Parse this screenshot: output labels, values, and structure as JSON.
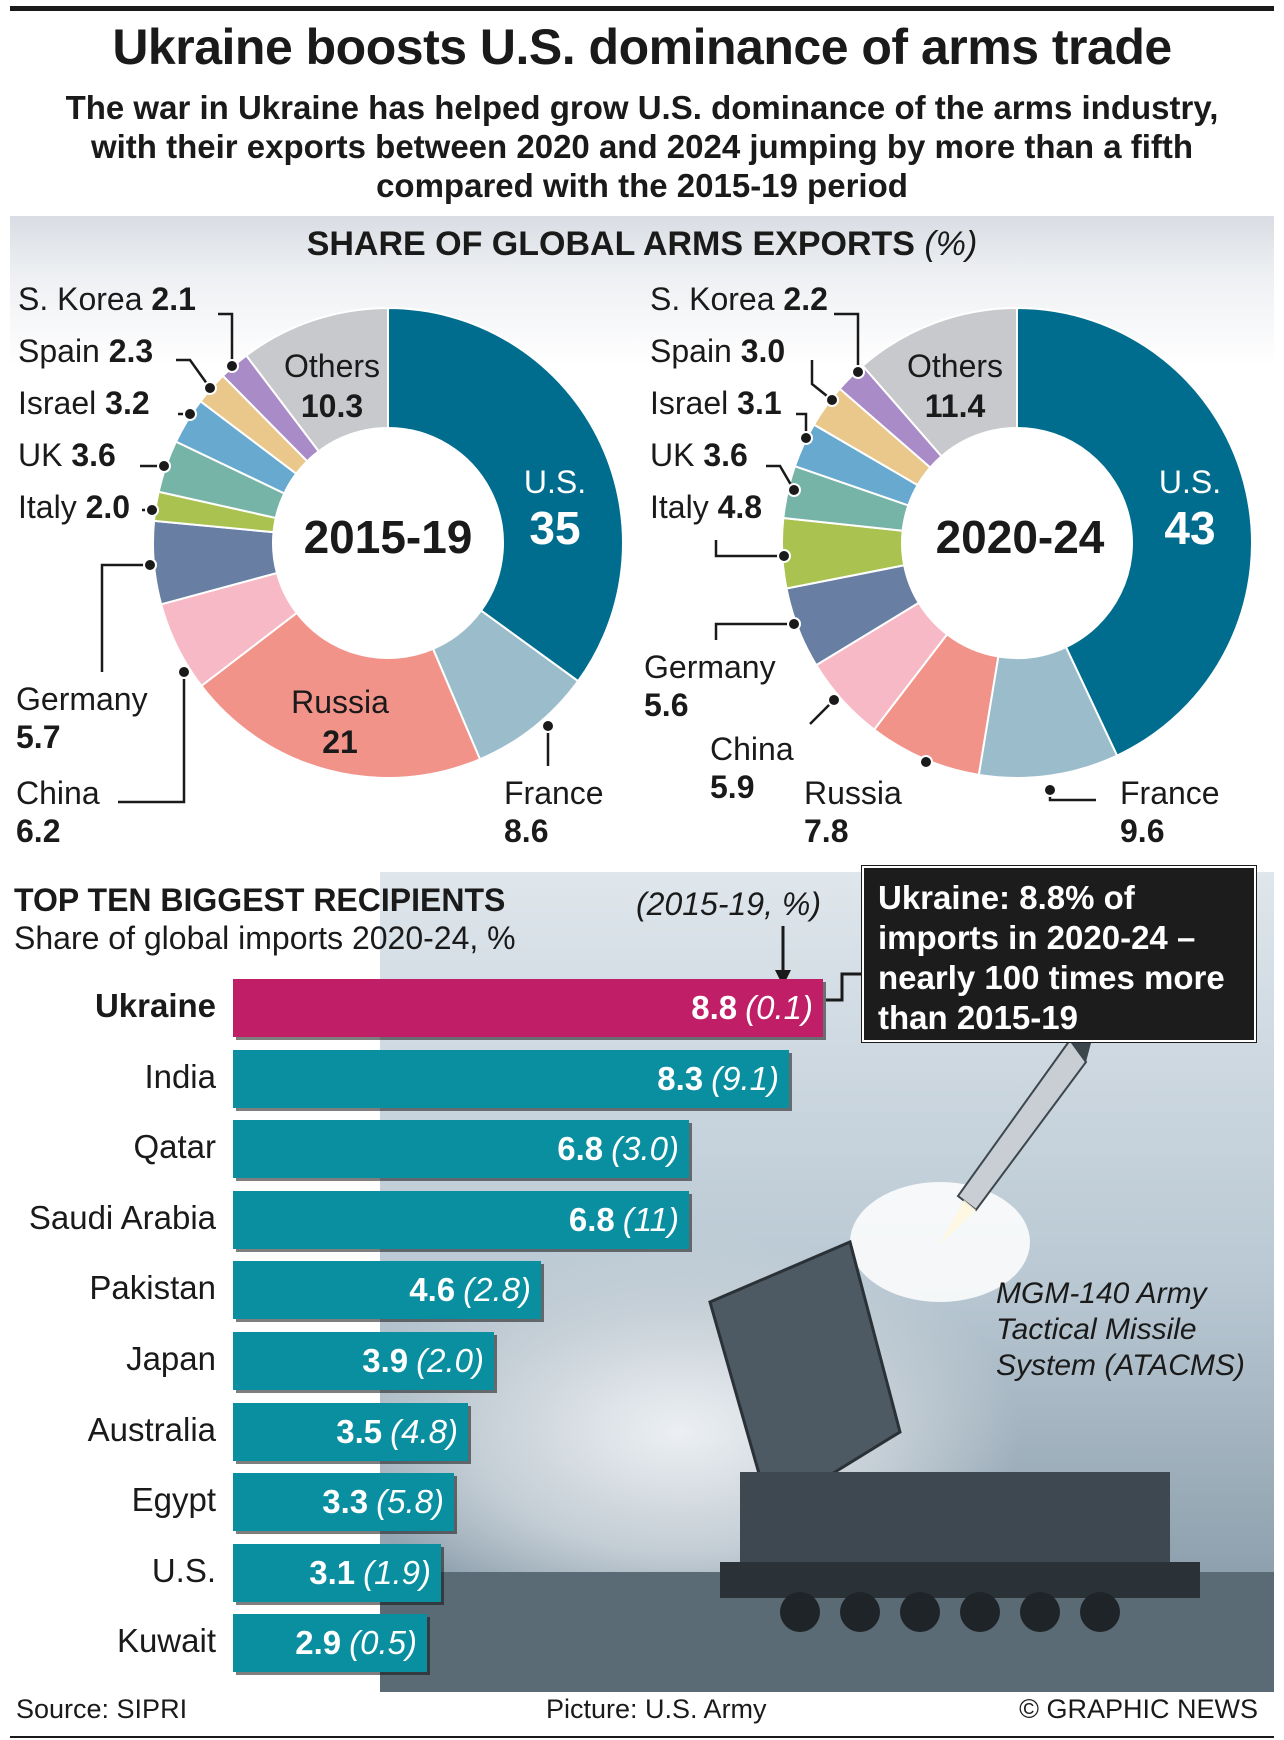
{
  "title": "Ukraine boosts U.S. dominance of arms trade",
  "subtitle": "The war in Ukraine has helped grow U.S. dominance of the arms industry, with their exports between 2020 and 2024 jumping by more than a fifth compared with the 2015-19 period",
  "exports_section": {
    "title": "SHARE OF GLOBAL ARMS EXPORTS",
    "unit": "(%)"
  },
  "imports_section": {
    "title": "TOP TEN BIGGEST RECIPIENTS",
    "subtitle": "Share of global imports 2020-24, %",
    "period_label": "(2015-19, %)"
  },
  "callout": "Ukraine: 8.8% of imports in 2020-24 – nearly 100 times more than 2015-19",
  "photo_caption": "MGM-140 Army Tactical Missile System (ATACMS)",
  "footer": {
    "source": "Source: SIPRI",
    "picture": "Picture: U.S. Army",
    "credit": "© GRAPHIC NEWS"
  },
  "colors": {
    "U.S.": "#006d8f",
    "France": "#9bbccb",
    "Russia": "#f2938a",
    "China": "#f6b9c5",
    "Germany": "#687fa3",
    "Italy": "#a9c250",
    "UK": "#77b4a8",
    "Israel": "#68a9cf",
    "Spain": "#eac78a",
    "S. Korea": "#a98bc8",
    "Others": "#c7c9cc",
    "bar": "#0a8fa0",
    "highlight": "#c01f67"
  },
  "chart_data": [
    {
      "type": "pie",
      "title": "2015-19",
      "slices": [
        {
          "label": "U.S.",
          "value": 35
        },
        {
          "label": "France",
          "value": 8.6
        },
        {
          "label": "Russia",
          "value": 21
        },
        {
          "label": "China",
          "value": 6.2
        },
        {
          "label": "Germany",
          "value": 5.7
        },
        {
          "label": "Italy",
          "value": 2.0
        },
        {
          "label": "UK",
          "value": 3.6
        },
        {
          "label": "Israel",
          "value": 3.2
        },
        {
          "label": "Spain",
          "value": 2.3
        },
        {
          "label": "S. Korea",
          "value": 2.1
        },
        {
          "label": "Others",
          "value": 10.3
        }
      ]
    },
    {
      "type": "pie",
      "title": "2020-24",
      "slices": [
        {
          "label": "U.S.",
          "value": 43
        },
        {
          "label": "France",
          "value": 9.6
        },
        {
          "label": "Russia",
          "value": 7.8
        },
        {
          "label": "China",
          "value": 5.9
        },
        {
          "label": "Germany",
          "value": 5.6
        },
        {
          "label": "Italy",
          "value": 4.8
        },
        {
          "label": "UK",
          "value": 3.6
        },
        {
          "label": "Israel",
          "value": 3.1
        },
        {
          "label": "Spain",
          "value": 3.0
        },
        {
          "label": "S. Korea",
          "value": 2.2
        },
        {
          "label": "Others",
          "value": 11.4
        }
      ]
    },
    {
      "type": "bar",
      "title": "TOP TEN BIGGEST RECIPIENTS",
      "categories": [
        "Ukraine",
        "India",
        "Qatar",
        "Saudi Arabia",
        "Pakistan",
        "Japan",
        "Australia",
        "Egypt",
        "U.S.",
        "Kuwait"
      ],
      "series": [
        {
          "name": "Share of global imports 2020-24, %",
          "values": [
            8.8,
            8.3,
            6.8,
            6.8,
            4.6,
            3.9,
            3.5,
            3.3,
            3.1,
            2.9
          ]
        },
        {
          "name": "(2015-19, %)",
          "values": [
            "0.1",
            "9.1",
            "3.0",
            "11",
            "2.8",
            "2.0",
            "4.8",
            "5.8",
            "1.9",
            "0.5"
          ]
        }
      ]
    }
  ]
}
